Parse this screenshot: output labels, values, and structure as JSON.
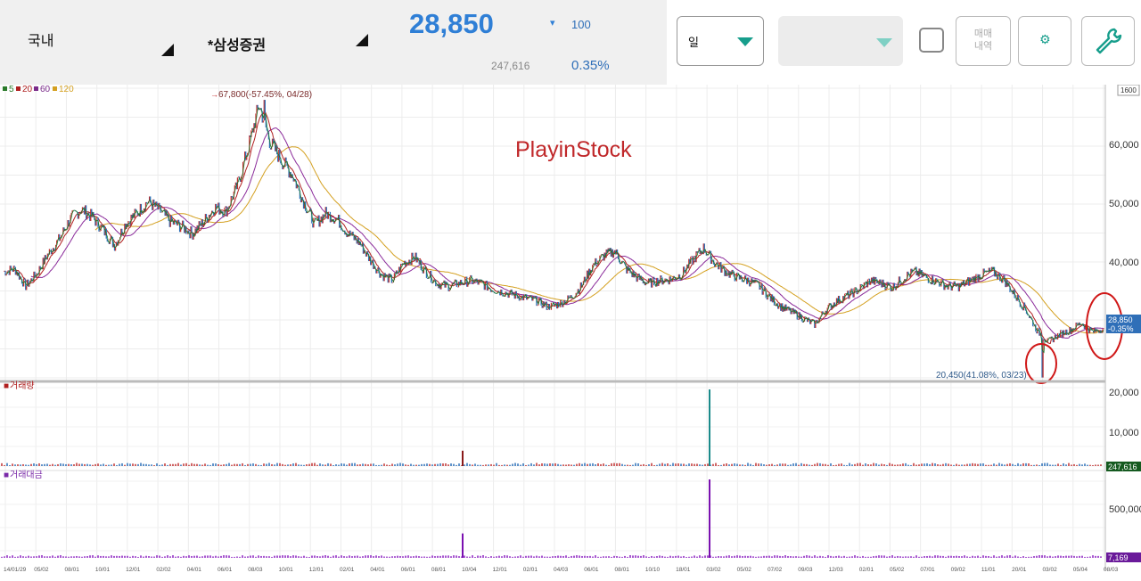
{
  "header": {
    "market": "국내",
    "stock_name": "*삼성증권",
    "price": "28,850",
    "change_arrow": "▾",
    "change_amount": "100",
    "volume": "247,616",
    "change_rate": "0.35%"
  },
  "toolbar": {
    "period_label": "일",
    "second_select_value": "",
    "trade_history_label": "매매\n내역",
    "trade_history_line1": "매매",
    "trade_history_line2": "내역"
  },
  "chart": {
    "ma_legend": [
      {
        "label": "5",
        "color": "#2a7a2a"
      },
      {
        "label": "20",
        "color": "#b02020"
      },
      {
        "label": "60",
        "color": "#7a2a8a"
      },
      {
        "label": "120",
        "color": "#d4a020"
      }
    ],
    "high_annotation": "67,800(-57.45%, 04/28)",
    "low_annotation": "20,450(41.08%, 03/23)",
    "watermark": "PlayinStock",
    "zoom_box": "1600",
    "price_axis": [
      "60,000",
      "50,000",
      "40,000"
    ],
    "current_price_tag": "28,850",
    "current_change_tag": "-0.35%",
    "volume_title": "거래량",
    "volume_axis": [
      "20,000",
      "10,000"
    ],
    "volume_tag": "247,616",
    "amount_title": "거래대금",
    "amount_axis": [
      "500,000"
    ],
    "amount_tag": "7,169",
    "date_labels": [
      "14/01/29",
      "05/02",
      "08/01",
      "10/01",
      "12/01",
      "02/02",
      "04/01",
      "06/01",
      "08/03",
      "10/01",
      "12/01",
      "02/01",
      "04/01",
      "06/01",
      "08/01",
      "10/04",
      "12/01",
      "02/01",
      "04/03",
      "06/01",
      "08/01",
      "10/10",
      "18/01",
      "03/02",
      "05/02",
      "07/02",
      "09/03",
      "12/03",
      "02/01",
      "05/02",
      "07/01",
      "09/02",
      "11/01",
      "20/01",
      "03/02",
      "05/04",
      "08/03"
    ]
  },
  "chart_data": {
    "type": "line",
    "title": "",
    "series": [
      {
        "name": "5",
        "values": []
      },
      {
        "name": "20",
        "values": []
      },
      {
        "name": "60",
        "values": []
      },
      {
        "name": "120",
        "values": []
      }
    ],
    "y_ticks": [
      40000,
      50000,
      60000
    ],
    "high": {
      "value": 67800,
      "label": "67,800(-57.45%, 04/28)"
    },
    "low": {
      "value": 20450,
      "label": "20,450(41.08%, 03/23)"
    },
    "current": 28850,
    "anchors": [
      [
        0,
        38500
      ],
      [
        1,
        39000
      ],
      [
        2,
        36000
      ],
      [
        3,
        38200
      ],
      [
        4,
        41500
      ],
      [
        5,
        44000
      ],
      [
        6,
        47500
      ],
      [
        7,
        49200
      ],
      [
        8,
        47800
      ],
      [
        9,
        45500
      ],
      [
        10,
        43000
      ],
      [
        11,
        46800
      ],
      [
        12,
        48500
      ],
      [
        13,
        50500
      ],
      [
        14,
        49000
      ],
      [
        15,
        47000
      ],
      [
        16,
        46200
      ],
      [
        17,
        45000
      ],
      [
        18,
        47000
      ],
      [
        19,
        49500
      ],
      [
        20,
        48800
      ],
      [
        21,
        53000
      ],
      [
        22,
        59500
      ],
      [
        23,
        67000
      ],
      [
        24,
        60500
      ],
      [
        25,
        57500
      ],
      [
        26,
        55000
      ],
      [
        27,
        50500
      ],
      [
        28,
        46500
      ],
      [
        29,
        48500
      ],
      [
        30,
        47500
      ],
      [
        31,
        45000
      ],
      [
        32,
        43500
      ],
      [
        33,
        40500
      ],
      [
        34,
        38000
      ],
      [
        35,
        37000
      ],
      [
        36,
        40000
      ],
      [
        37,
        41000
      ],
      [
        38,
        38500
      ],
      [
        39,
        36500
      ],
      [
        40,
        36000
      ],
      [
        41,
        36500
      ],
      [
        42,
        37000
      ],
      [
        43,
        36500
      ],
      [
        44,
        35500
      ],
      [
        45,
        35000
      ],
      [
        46,
        34500
      ],
      [
        47,
        34000
      ],
      [
        48,
        33500
      ],
      [
        49,
        32500
      ],
      [
        50,
        33000
      ],
      [
        51,
        34000
      ],
      [
        52,
        36000
      ],
      [
        53,
        39500
      ],
      [
        54,
        41200
      ],
      [
        55,
        42000
      ],
      [
        56,
        39000
      ],
      [
        57,
        37500
      ],
      [
        58,
        36500
      ],
      [
        59,
        37000
      ],
      [
        60,
        37200
      ],
      [
        61,
        38000
      ],
      [
        62,
        40500
      ],
      [
        63,
        42500
      ],
      [
        64,
        40000
      ],
      [
        65,
        38500
      ],
      [
        66,
        37500
      ],
      [
        67,
        37000
      ],
      [
        68,
        36000
      ],
      [
        69,
        34000
      ],
      [
        70,
        32500
      ],
      [
        71,
        31500
      ],
      [
        72,
        30500
      ],
      [
        73,
        29500
      ],
      [
        74,
        32000
      ],
      [
        75,
        33500
      ],
      [
        76,
        34500
      ],
      [
        77,
        35500
      ],
      [
        78,
        37000
      ],
      [
        79,
        36500
      ],
      [
        80,
        35800
      ],
      [
        81,
        37500
      ],
      [
        82,
        38500
      ],
      [
        83,
        37500
      ],
      [
        84,
        36800
      ],
      [
        85,
        36000
      ],
      [
        86,
        36000
      ],
      [
        87,
        37000
      ],
      [
        88,
        38000
      ],
      [
        89,
        38500
      ],
      [
        90,
        37200
      ],
      [
        91,
        34500
      ],
      [
        92,
        32000
      ],
      [
        93,
        28500
      ],
      [
        94,
        26500
      ],
      [
        95,
        27800
      ],
      [
        96,
        28500
      ],
      [
        97,
        29800
      ],
      [
        98,
        28200
      ],
      [
        99,
        28850
      ]
    ],
    "volume_spikes": [
      {
        "x": 796,
        "value": 20000
      },
      {
        "x": 519,
        "value": 4000
      }
    ],
    "amount_spikes": [
      {
        "x": 796,
        "value": 900000
      },
      {
        "x": 519,
        "value": 280000
      }
    ]
  }
}
